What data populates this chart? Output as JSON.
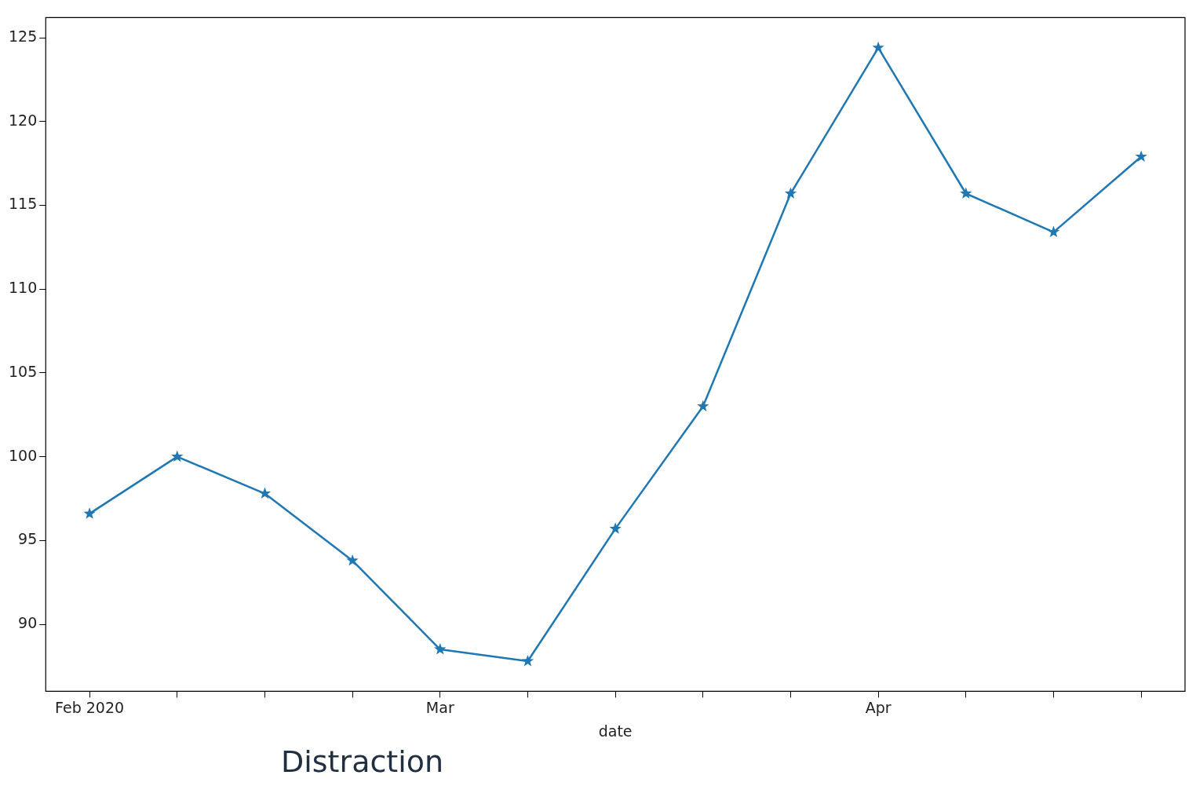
{
  "chart_data": {
    "type": "line",
    "xlabel": "date",
    "annotations": [
      "Distraction"
    ],
    "categories": [
      "Feb 2020",
      null,
      null,
      null,
      "Mar",
      null,
      null,
      null,
      null,
      "Apr",
      null,
      null,
      null
    ],
    "series": [
      {
        "color": "#1f77b4",
        "values": [
          96.6,
          100.0,
          97.8,
          93.8,
          88.5,
          87.8,
          95.7,
          103.0,
          115.7,
          124.4,
          115.7,
          113.4,
          117.9
        ]
      }
    ],
    "ylim": [
      86,
      126.2
    ],
    "yticks": [
      90,
      95,
      100,
      105,
      110,
      115,
      120,
      125
    ],
    "grid": false,
    "legend": false,
    "marker": "star",
    "line_style": "solid"
  }
}
